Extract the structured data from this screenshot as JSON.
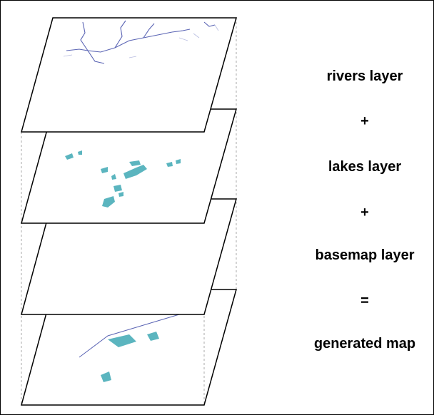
{
  "legend": {
    "rivers": "rivers layer",
    "plus1": "+",
    "lakes": "lakes layer",
    "plus2": "+",
    "basemap": "basemap layer",
    "equals": "=",
    "generated": "generated map"
  },
  "colors": {
    "river": "#5a64b4",
    "lake": "#5bb5bf",
    "brown": "#8a4a0c",
    "orange": "#e59a1e",
    "tan": "#f2dba0",
    "olive": "#b4a93a",
    "green": "#3fa535",
    "pink": "#f4c3b3"
  }
}
